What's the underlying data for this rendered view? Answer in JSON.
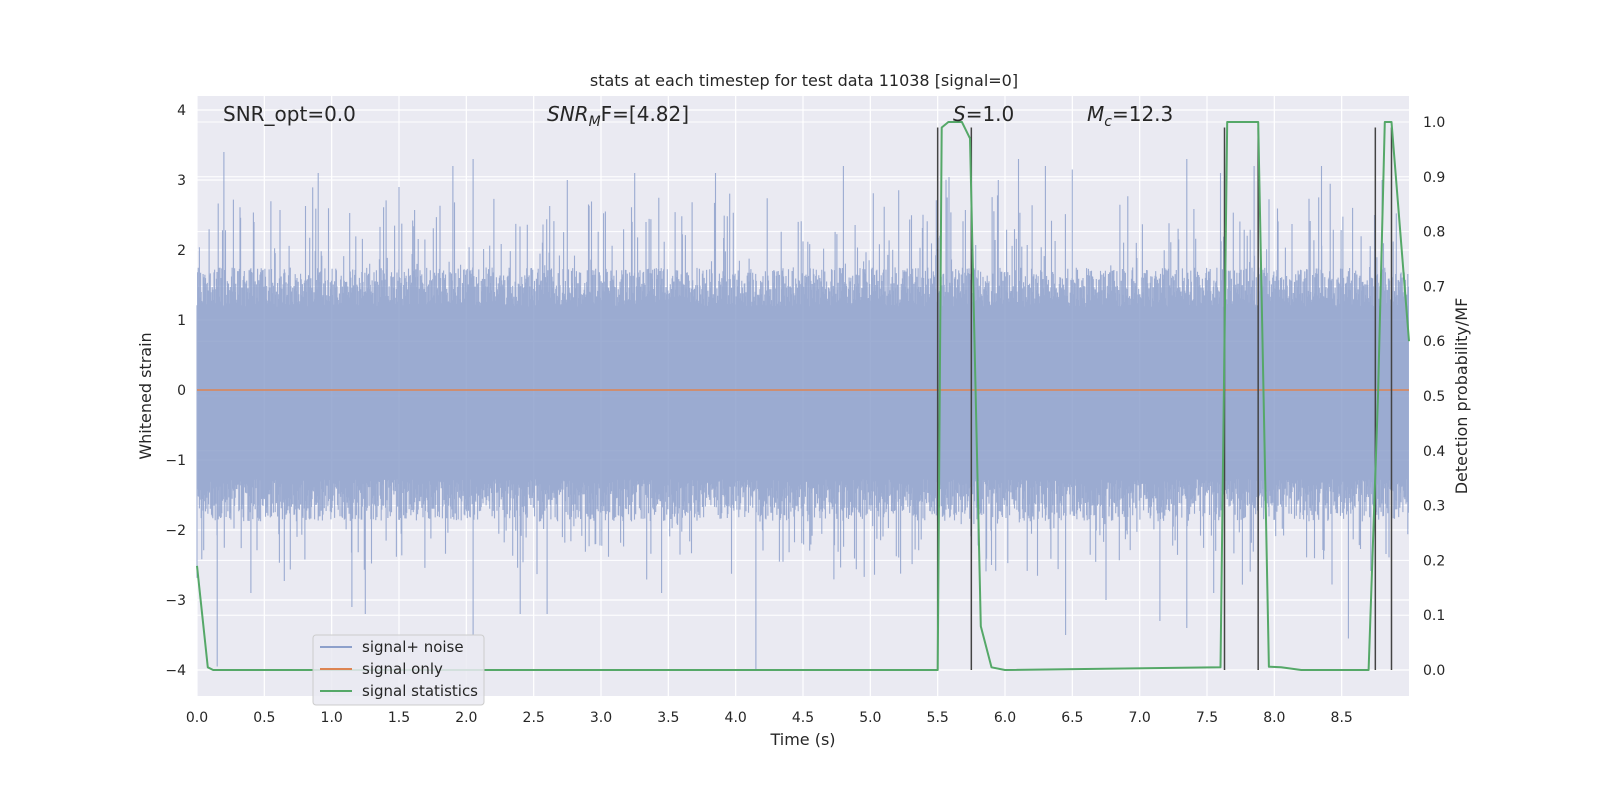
{
  "chart_data": {
    "type": "line",
    "title": "stats at each timestep for test data 11038 [signal=0]",
    "xlabel": "Time (s)",
    "ylabel_left": "Whitened strain",
    "ylabel_right": "Detection probability/MF",
    "xlim": [
      0.0,
      9.0
    ],
    "ylim_left": [
      -4.3,
      4.2
    ],
    "ylim_right": [
      -0.048,
      1.025
    ],
    "grid": true,
    "x_ticks": [
      "0.0",
      "0.5",
      "1.0",
      "1.5",
      "2.0",
      "2.5",
      "3.0",
      "3.5",
      "4.0",
      "4.5",
      "5.0",
      "5.5",
      "6.0",
      "6.5",
      "7.0",
      "7.5",
      "8.0",
      "8.5"
    ],
    "y_ticks_left": [
      "4",
      "3",
      "2",
      "1",
      "0",
      "−1",
      "−2",
      "−3",
      "−4"
    ],
    "y_ticks_right": [
      "1.0",
      "0.9",
      "0.8",
      "0.7",
      "0.6",
      "0.5",
      "0.4",
      "0.3",
      "0.2",
      "0.1",
      "0.0"
    ],
    "annotations": {
      "snr_opt": "SNR_opt=0.0",
      "snr_mf_main": "SNR",
      "snr_mf_sub": "M",
      "snr_mf_rest": "F=[4.82]",
      "s_main": "S",
      "s_rest": "=1.0",
      "mc_main": "M",
      "mc_sub": "c",
      "mc_rest": "=12.3"
    },
    "legend": {
      "placement": "lower-left",
      "entries": [
        "signal+ noise",
        "signal only",
        "signal statistics"
      ]
    },
    "colors": {
      "noise": "#8da0cb",
      "signal": "#dd8452",
      "stats": "#55a868",
      "vlines": "#444444",
      "plot_bg": "#eaeaf2"
    },
    "series": [
      {
        "name": "signal+ noise",
        "axis": "left",
        "kind": "noise",
        "band_upper": 1.4,
        "band_lower": -1.5,
        "peaks_up": [
          [
            0.2,
            3.4
          ],
          [
            0.9,
            3.1
          ],
          [
            1.5,
            2.9
          ],
          [
            1.9,
            3.2
          ],
          [
            2.05,
            3.3
          ],
          [
            2.75,
            3.0
          ],
          [
            3.25,
            3.1
          ],
          [
            3.85,
            3.1
          ],
          [
            4.8,
            3.2
          ],
          [
            5.75,
            3.6
          ],
          [
            5.95,
            3.0
          ],
          [
            6.1,
            3.3
          ],
          [
            6.3,
            3.2
          ],
          [
            6.5,
            3.15
          ],
          [
            7.35,
            3.3
          ],
          [
            7.6,
            3.1
          ],
          [
            7.85,
            3.2
          ],
          [
            8.35,
            3.2
          ],
          [
            8.8,
            3.0
          ]
        ],
        "peaks_down": [
          [
            0.15,
            -3.95
          ],
          [
            0.4,
            -2.9
          ],
          [
            1.15,
            -3.1
          ],
          [
            1.25,
            -3.2
          ],
          [
            2.05,
            -3.5
          ],
          [
            2.4,
            -3.2
          ],
          [
            2.6,
            -3.2
          ],
          [
            3.45,
            -2.9
          ],
          [
            4.15,
            -4.0
          ],
          [
            5.5,
            -2.7
          ],
          [
            6.45,
            -3.5
          ],
          [
            6.75,
            -3.0
          ],
          [
            7.15,
            -3.3
          ],
          [
            7.35,
            -3.4
          ],
          [
            7.55,
            -2.9
          ],
          [
            8.55,
            -3.55
          ],
          [
            8.75,
            -3.7
          ]
        ]
      },
      {
        "name": "signal only",
        "axis": "left",
        "x": [
          0.0,
          9.0
        ],
        "y": [
          0.0,
          0.0
        ]
      },
      {
        "name": "signal statistics",
        "axis": "right",
        "x": [
          0.0,
          0.08,
          0.12,
          5.5,
          5.53,
          5.58,
          5.68,
          5.74,
          5.82,
          5.9,
          6.0,
          7.6,
          7.65,
          7.7,
          7.88,
          7.96,
          8.05,
          8.2,
          8.7,
          8.77,
          8.82,
          8.87,
          9.0
        ],
        "y": [
          0.19,
          0.005,
          0.0,
          0.0,
          0.99,
          1.0,
          1.0,
          0.97,
          0.08,
          0.005,
          0.0,
          0.005,
          1.0,
          1.0,
          1.0,
          0.006,
          0.005,
          0.0,
          0.0,
          0.5,
          1.0,
          1.0,
          0.6
        ]
      }
    ],
    "vlines": [
      {
        "x": 5.5,
        "y_top": 0.99,
        "y_bottom": 0.0
      },
      {
        "x": 5.75,
        "y_top": 0.99,
        "y_bottom": 0.0
      },
      {
        "x": 7.63,
        "y_top": 0.99,
        "y_bottom": 0.0
      },
      {
        "x": 7.88,
        "y_top": 0.99,
        "y_bottom": 0.0
      },
      {
        "x": 8.75,
        "y_top": 0.99,
        "y_bottom": 0.0
      },
      {
        "x": 8.87,
        "y_top": 0.99,
        "y_bottom": 0.0
      }
    ]
  }
}
